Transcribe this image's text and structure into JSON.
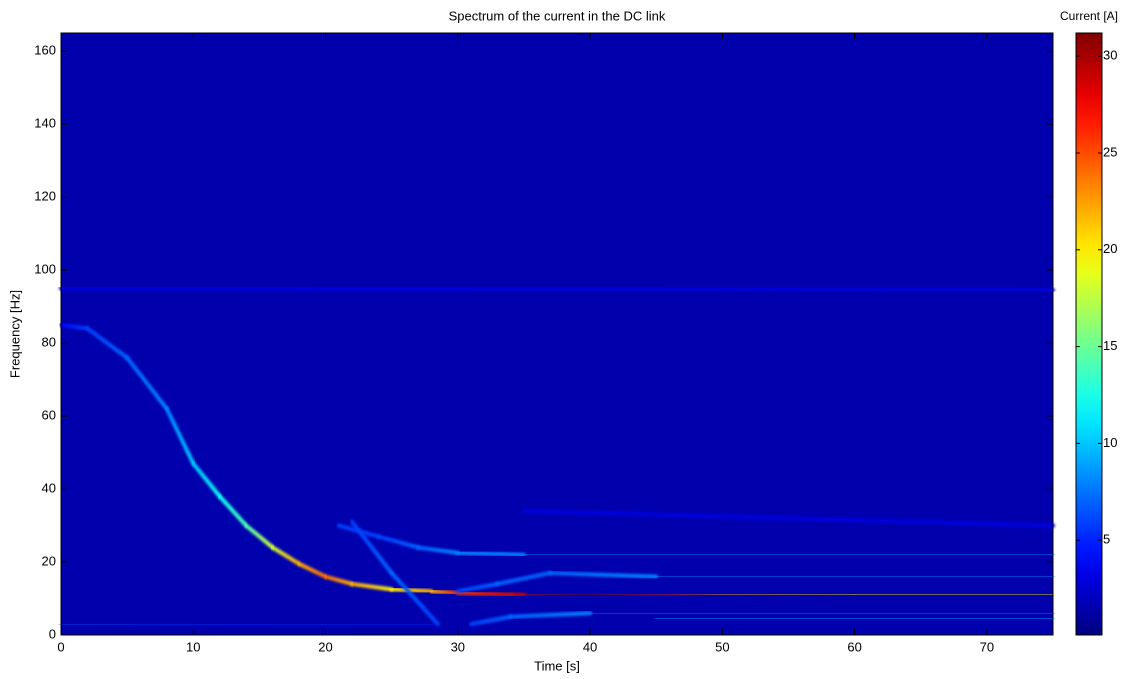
{
  "chart_data": {
    "type": "spectrogram",
    "title": "Spectrum of the current in the DC link",
    "xlabel": "Time [s]",
    "ylabel": "Frequency [Hz]",
    "colorbar_label": "Current [A]",
    "colormap": "jet",
    "xlim": [
      0,
      75
    ],
    "ylim": [
      0,
      165
    ],
    "xticks": [
      0,
      10,
      20,
      30,
      40,
      50,
      60,
      70
    ],
    "yticks": [
      0,
      20,
      40,
      60,
      80,
      100,
      120,
      140,
      160
    ],
    "clim": [
      0.1,
      31.2
    ],
    "cticks": [
      5,
      10,
      15,
      20,
      25,
      30
    ],
    "background_value": 1.5,
    "series": [
      {
        "x": [
          0,
          2,
          5,
          8,
          10,
          12,
          14,
          16,
          18,
          20,
          22,
          25,
          28,
          30,
          35,
          40,
          45,
          50,
          60,
          75
        ],
        "y": [
          85,
          84,
          76,
          62,
          47,
          38,
          30,
          24,
          19.5,
          16,
          14,
          12.5,
          12,
          11.5,
          11,
          11,
          11,
          11,
          11,
          11
        ],
        "z": [
          4,
          6,
          7,
          8,
          10,
          12,
          14,
          18,
          22,
          24,
          22,
          20,
          22,
          26,
          29,
          31,
          28,
          22,
          20,
          20
        ]
      },
      {
        "x": [
          22,
          25,
          28.5
        ],
        "y": [
          31,
          17,
          3
        ],
        "z": [
          6,
          7,
          6
        ]
      },
      {
        "x": [
          21,
          24,
          27,
          30,
          35,
          75
        ],
        "y": [
          30,
          27,
          24,
          22.5,
          22,
          22
        ],
        "z": [
          6,
          6,
          7,
          8,
          8,
          8
        ]
      },
      {
        "x": [
          30,
          33,
          37,
          45,
          75
        ],
        "y": [
          12,
          14,
          17,
          16,
          16
        ],
        "z": [
          6,
          7,
          7,
          8,
          8
        ]
      },
      {
        "x": [
          31,
          34,
          40,
          75
        ],
        "y": [
          3,
          5,
          6,
          6
        ],
        "z": [
          6,
          7,
          8,
          8
        ]
      },
      {
        "x": [
          45,
          75
        ],
        "y": [
          4.5,
          4.5
        ],
        "z": [
          9,
          9
        ]
      },
      {
        "x": [
          0,
          75
        ],
        "y": [
          95,
          94.5
        ],
        "z": [
          3,
          3
        ]
      },
      {
        "x": [
          35,
          75
        ],
        "y": [
          34,
          30
        ],
        "z": [
          3,
          3
        ]
      },
      {
        "x": [
          0,
          28
        ],
        "y": [
          3,
          3
        ],
        "z": [
          6,
          5
        ]
      }
    ]
  }
}
